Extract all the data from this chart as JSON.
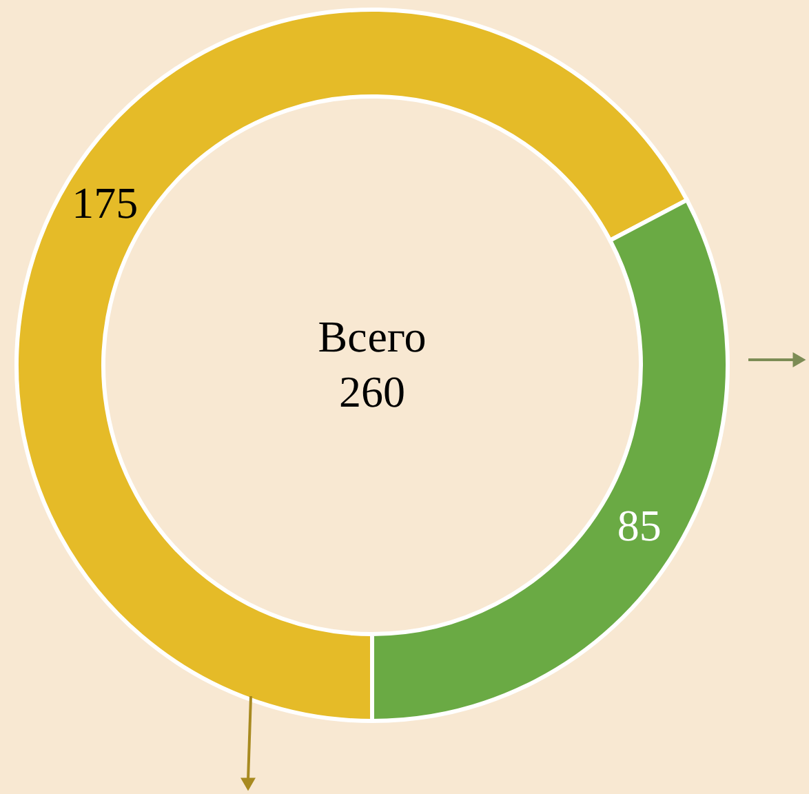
{
  "chart_data": {
    "type": "donut",
    "categories": [
      null,
      null
    ],
    "values": [
      175,
      85
    ],
    "colors": [
      "#e5bb28",
      "#6aaa44"
    ],
    "data_labels": true,
    "legend": false,
    "annotations": [
      "Всего",
      "260"
    ]
  }
}
